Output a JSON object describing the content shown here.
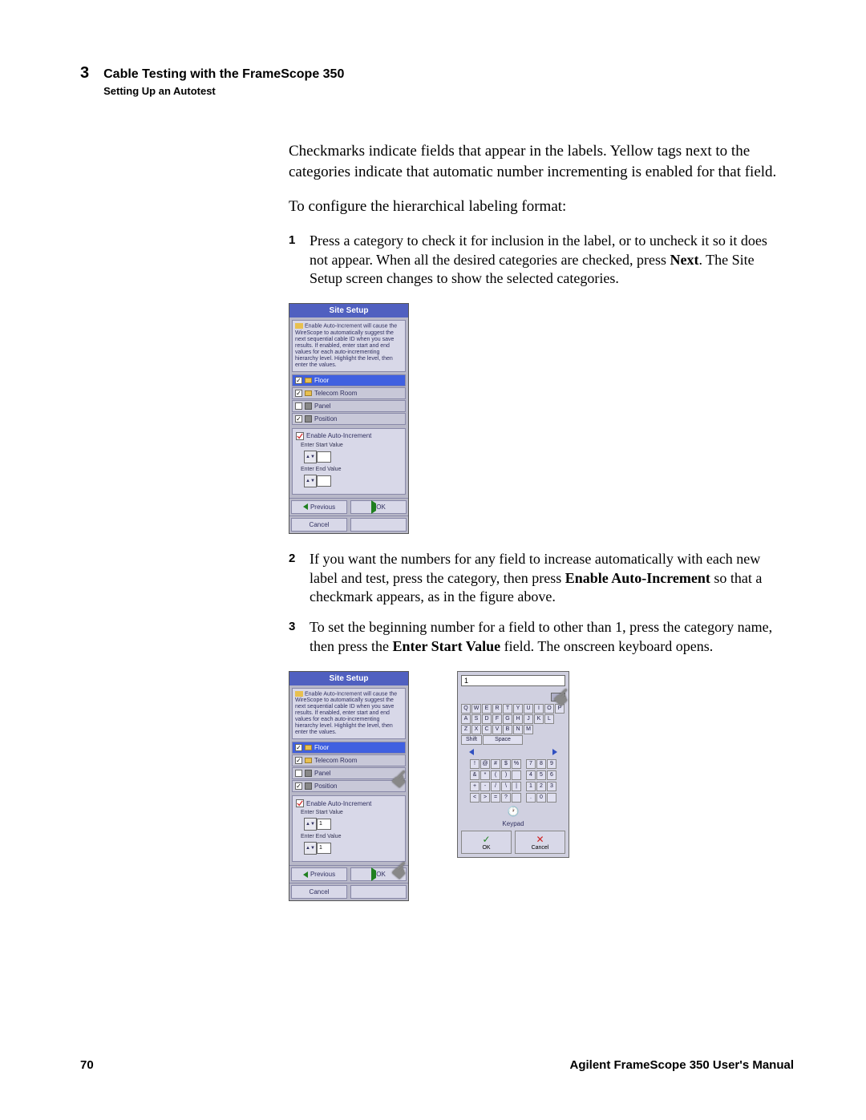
{
  "header": {
    "chapter_num": "3",
    "title": "Cable Testing with the FrameScope 350",
    "subtitle": "Setting Up an Autotest"
  },
  "body": {
    "p1": "Checkmarks indicate fields that appear in the labels. Yellow tags next to the categories indicate that automatic number incrementing is enabled for that field.",
    "p2": "To configure the hierarchical labeling format:"
  },
  "steps": {
    "s1": {
      "num": "1",
      "text_a": "Press a category to check it for inclusion in the label, or to uncheck it so it does not appear. When all the desired categories are checked, press ",
      "bold_a": "Next",
      "text_b": ". The Site Setup screen changes to show the selected categories."
    },
    "s2": {
      "num": "2",
      "text_a": "If you want the numbers for any field to increase automatically with each new label and test, press the category, then press ",
      "bold_a": "Enable Auto-Increment",
      "text_b": " so that a checkmark appears, as in the figure above."
    },
    "s3": {
      "num": "3",
      "text_a": "To set the beginning number for a field to other than 1, press the category name, then press the ",
      "bold_a": "Enter Start Value",
      "text_b": " field. The onscreen keyboard opens."
    }
  },
  "screen": {
    "title": "Site Setup",
    "desc": "Enable Auto-Increment will cause the WireScope to automatically suggest the next sequential cable ID when you save results. If enabled, enter start and end values for each auto-incrementing hierarchy level. Highlight the level, then enter the values.",
    "cat1": "Floor",
    "cat2": "Telecom Room",
    "cat3": "Panel",
    "cat4": "Position",
    "auto_label": "Enable Auto-Increment",
    "start_label": "Enter Start Value",
    "end_label": "Enter End Value",
    "prev": "Previous",
    "ok": "OK",
    "cancel": "Cancel"
  },
  "keyboard": {
    "display": "1",
    "row1": [
      "Q",
      "W",
      "E",
      "R",
      "T",
      "Y",
      "U",
      "I",
      "O",
      "P"
    ],
    "row2": [
      "A",
      "S",
      "D",
      "F",
      "G",
      "H",
      "J",
      "K",
      "L"
    ],
    "row3": [
      "Z",
      "X",
      "C",
      "V",
      "B",
      "N",
      "M"
    ],
    "shift": "Shift",
    "space": "Space",
    "num_left": [
      [
        "!",
        "@",
        "#",
        "$",
        "%"
      ],
      [
        "&",
        "*",
        "(",
        ")",
        " "
      ],
      [
        "+",
        "-",
        "/",
        "\\",
        "|"
      ],
      [
        "<",
        ">",
        "=",
        "?",
        " "
      ]
    ],
    "num_right": [
      [
        "7",
        "8",
        "9"
      ],
      [
        "4",
        "5",
        "6"
      ],
      [
        "1",
        "2",
        "3"
      ],
      [
        ".",
        "0",
        " "
      ]
    ],
    "keypad_label": "Keypad",
    "ok": "OK",
    "cancel": "Cancel"
  },
  "footer": {
    "page": "70",
    "manual": "Agilent FrameScope 350 User's Manual"
  }
}
